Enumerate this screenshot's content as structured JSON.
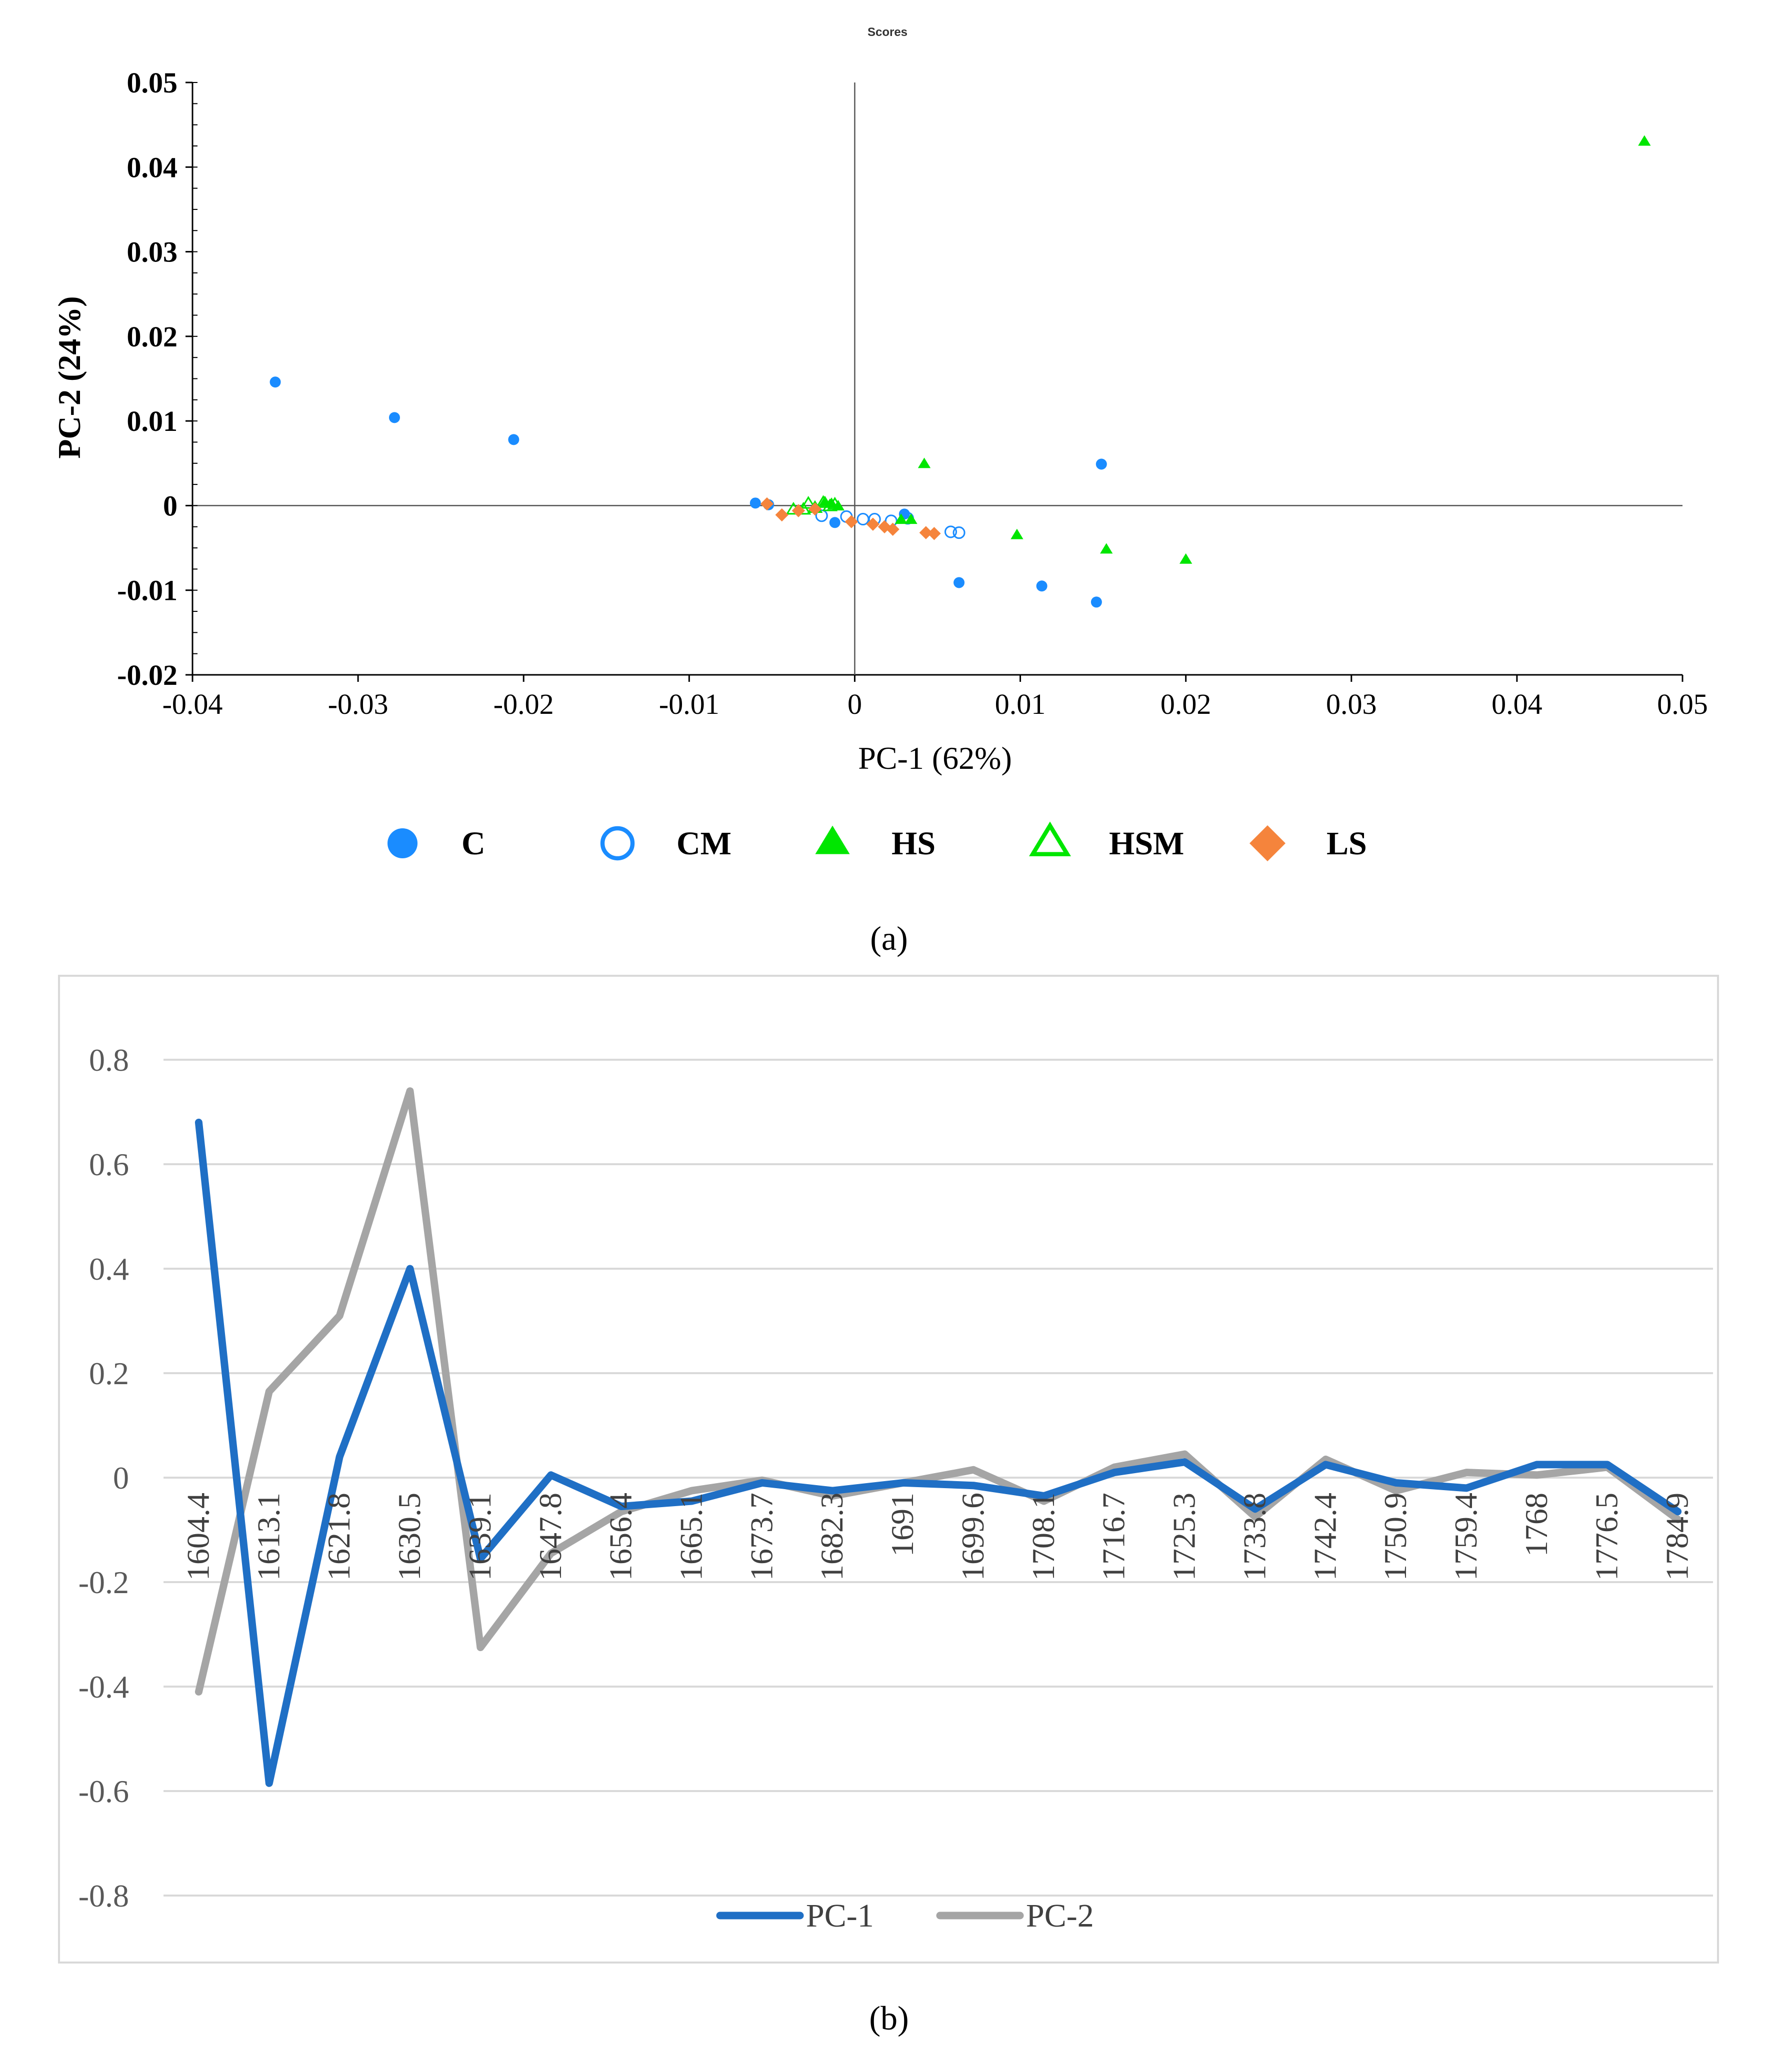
{
  "chart_data": [
    {
      "type": "scatter",
      "title": "Scores",
      "xlabel": "PC-1 (62%)",
      "ylabel": "PC-2 (24%)",
      "xlim": [
        -0.04,
        0.05
      ],
      "ylim": [
        -0.02,
        0.05
      ],
      "xticks": [
        -0.04,
        -0.03,
        -0.02,
        -0.01,
        0,
        0.01,
        0.02,
        0.03,
        0.04,
        0.05
      ],
      "xtick_labels": [
        "-0.04",
        "-0.03",
        "-0.02",
        "-0.01",
        "0",
        "0.01",
        "0.02",
        "0.03",
        "0.04",
        "0.05"
      ],
      "yticks": [
        0.05,
        0.04,
        0.03,
        0.02,
        0.01,
        0,
        -0.01,
        -0.02
      ],
      "ytick_labels": [
        "0.05",
        "0.04",
        "0.03",
        "0.02",
        "0.01",
        "0",
        "-0.01",
        "-0.02"
      ],
      "caption": "(a)",
      "series": [
        {
          "name": "C",
          "marker": "circle-filled",
          "color": "#1a8cff",
          "points": [
            [
              -0.035,
              0.0146
            ],
            [
              -0.0278,
              0.0104
            ],
            [
              -0.0206,
              0.0078
            ],
            [
              -0.006,
              0.0003
            ],
            [
              -0.0052,
              0.0001
            ],
            [
              -0.0012,
              -0.002
            ],
            [
              0.003,
              -0.001
            ],
            [
              0.0149,
              0.0049
            ],
            [
              0.0063,
              -0.0091
            ],
            [
              0.0113,
              -0.0095
            ],
            [
              0.0146,
              -0.0114
            ]
          ]
        },
        {
          "name": "CM",
          "marker": "circle-open",
          "color": "#1a8cff",
          "points": [
            [
              -0.002,
              -0.0012
            ],
            [
              -0.0005,
              -0.0013
            ],
            [
              0.0005,
              -0.0016
            ],
            [
              0.0012,
              -0.0016
            ],
            [
              0.0022,
              -0.0018
            ],
            [
              0.0032,
              -0.0015
            ],
            [
              0.0058,
              -0.0031
            ],
            [
              0.0063,
              -0.0032
            ]
          ]
        },
        {
          "name": "HS",
          "marker": "triangle-filled",
          "color": "#00e600",
          "points": [
            [
              -0.0018,
              0.0004
            ],
            [
              -0.0014,
              0.0002
            ],
            [
              -0.001,
              -0.0001
            ],
            [
              0.0028,
              -0.0017
            ],
            [
              0.0034,
              -0.0017
            ],
            [
              0.0042,
              0.0049
            ],
            [
              0.0098,
              -0.0035
            ],
            [
              0.0152,
              -0.0052
            ],
            [
              0.02,
              -0.0064
            ],
            [
              0.0477,
              0.043
            ]
          ]
        },
        {
          "name": "HSM",
          "marker": "triangle-open",
          "color": "#00e600",
          "points": [
            [
              -0.0037,
              -0.0005
            ],
            [
              -0.0031,
              -0.0005
            ],
            [
              -0.0028,
              0.0002
            ],
            [
              -0.0024,
              -0.0003
            ],
            [
              -0.0019,
              0.0003
            ],
            [
              -0.0015,
              -0.0001
            ],
            [
              -0.0012,
              0.0001
            ]
          ]
        },
        {
          "name": "LS",
          "marker": "diamond-filled",
          "color": "#f5843c",
          "points": [
            [
              -0.0053,
              0.0002
            ],
            [
              -0.0044,
              -0.0011
            ],
            [
              -0.0034,
              -0.0006
            ],
            [
              -0.0024,
              -0.0004
            ],
            [
              -0.0002,
              -0.0019
            ],
            [
              0.0011,
              -0.0022
            ],
            [
              0.0018,
              -0.0025
            ],
            [
              0.0023,
              -0.0028
            ],
            [
              0.0043,
              -0.0032
            ],
            [
              0.0048,
              -0.0033
            ]
          ]
        }
      ]
    },
    {
      "type": "line",
      "caption": "(b)",
      "ylim": [
        -0.8,
        0.8
      ],
      "yticks": [
        0.8,
        0.6,
        0.4,
        0.2,
        0,
        -0.2,
        -0.4,
        -0.6,
        -0.8
      ],
      "ytick_labels": [
        "0.8",
        "0.6",
        "0.4",
        "0.2",
        "0",
        "-0.2",
        "-0.4",
        "-0.6",
        "-0.8"
      ],
      "categories": [
        "1604.4",
        "1613.1",
        "1621.8",
        "1630.5",
        "1639.1",
        "1647.8",
        "1656.4",
        "1665.1",
        "1673.7",
        "1682.3",
        "1691",
        "1699.6",
        "1708.1",
        "1716.7",
        "1725.3",
        "1733.8",
        "1742.4",
        "1750.9",
        "1759.4",
        "1768",
        "1776.5",
        "1784.9"
      ],
      "series": [
        {
          "name": "PC-1",
          "color": "#1f6fc5",
          "values": [
            0.68,
            -0.585,
            0.04,
            0.4,
            -0.155,
            0.005,
            -0.055,
            -0.045,
            -0.01,
            -0.025,
            -0.01,
            -0.015,
            -0.035,
            0.01,
            0.03,
            -0.06,
            0.025,
            -0.01,
            -0.02,
            0.025,
            0.025,
            -0.065
          ]
        },
        {
          "name": "PC-2",
          "color": "#a5a5a5",
          "values": [
            -0.41,
            0.165,
            0.31,
            0.74,
            -0.325,
            -0.145,
            -0.065,
            -0.025,
            -0.005,
            -0.035,
            -0.01,
            0.015,
            -0.045,
            0.02,
            0.045,
            -0.075,
            0.035,
            -0.025,
            0.01,
            0.005,
            0.02,
            -0.08
          ]
        }
      ]
    }
  ]
}
